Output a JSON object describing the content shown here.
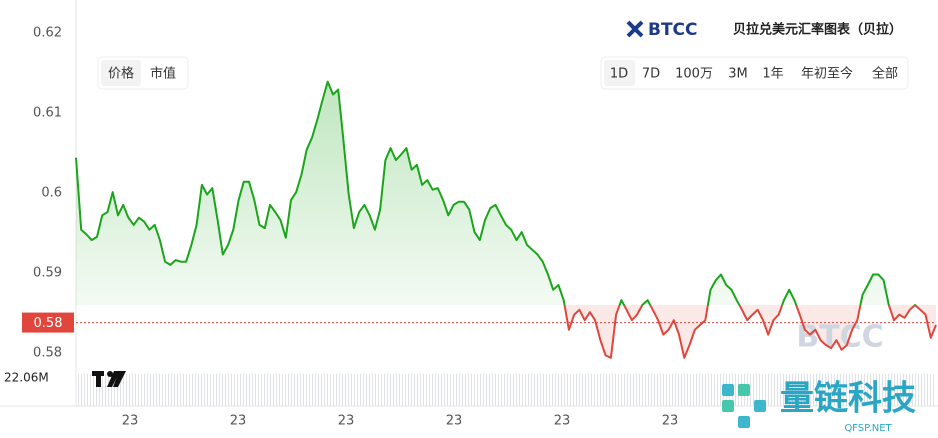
{
  "chart_data": {
    "type": "line",
    "title": "贝拉兑美元汇率图表（贝拉）",
    "brand": "BTCC",
    "tabs": [
      "价格",
      "市值"
    ],
    "ranges": [
      "1D",
      "7D",
      "100万",
      "3M",
      "1年",
      "年初至今",
      "全部"
    ],
    "ylim": [
      0.5775,
      0.6241
    ],
    "yticks": [
      0.62,
      0.61,
      0.6,
      0.59,
      0.58
    ],
    "baseline": 0.586,
    "current_value": 0.5838,
    "current_label": "0.58",
    "volume_label": "22.06M",
    "xtick_labels": [
      "23",
      "23",
      "23",
      "23",
      "23",
      "23"
    ],
    "up_color": "#1aa51a",
    "down_color": "#e0463c",
    "watermarks": [
      "量链科技",
      "QFSP.NET"
    ],
    "values": [
      0.6044,
      0.5954,
      0.5948,
      0.5941,
      0.5945,
      0.5972,
      0.5976,
      0.6001,
      0.5972,
      0.5985,
      0.5969,
      0.596,
      0.5969,
      0.5964,
      0.5954,
      0.596,
      0.5941,
      0.5914,
      0.591,
      0.5916,
      0.5914,
      0.5914,
      0.5935,
      0.596,
      0.601,
      0.5998,
      0.6006,
      0.5966,
      0.5923,
      0.5935,
      0.5954,
      0.5991,
      0.6014,
      0.6014,
      0.5991,
      0.596,
      0.5956,
      0.5985,
      0.5976,
      0.5966,
      0.5944,
      0.5991,
      0.6001,
      0.6023,
      0.6054,
      0.6069,
      0.6091,
      0.6116,
      0.6139,
      0.6123,
      0.6129,
      0.6066,
      0.5998,
      0.5956,
      0.5976,
      0.5985,
      0.5972,
      0.5954,
      0.5979,
      0.6041,
      0.6056,
      0.6041,
      0.6048,
      0.6056,
      0.6029,
      0.6035,
      0.601,
      0.6016,
      0.6004,
      0.6006,
      0.5991,
      0.5972,
      0.5985,
      0.5989,
      0.5989,
      0.5979,
      0.5951,
      0.5941,
      0.5966,
      0.5981,
      0.5985,
      0.5972,
      0.596,
      0.5954,
      0.5941,
      0.5951,
      0.5935,
      0.5929,
      0.5923,
      0.5914,
      0.5898,
      0.5879,
      0.5885,
      0.5866,
      0.5829,
      0.5848,
      0.5854,
      0.5841,
      0.5851,
      0.5841,
      0.5816,
      0.5797,
      0.5794,
      0.5848,
      0.5866,
      0.5854,
      0.5841,
      0.5848,
      0.586,
      0.5866,
      0.5854,
      0.5841,
      0.5823,
      0.5829,
      0.5841,
      0.5823,
      0.5794,
      0.581,
      0.5829,
      0.5835,
      0.5841,
      0.5879,
      0.5891,
      0.5898,
      0.5885,
      0.5879,
      0.5866,
      0.5854,
      0.5841,
      0.5848,
      0.5854,
      0.5841,
      0.5823,
      0.5841,
      0.5848,
      0.5866,
      0.5879,
      0.5866,
      0.5848,
      0.5829,
      0.5823,
      0.5829,
      0.5816,
      0.581,
      0.5806,
      0.5816,
      0.5804,
      0.581,
      0.5829,
      0.5841,
      0.5873,
      0.5885,
      0.5898,
      0.5898,
      0.5891,
      0.586,
      0.5841,
      0.5848,
      0.5844,
      0.5854,
      0.586,
      0.5854,
      0.5848,
      0.5819,
      0.5835
    ]
  }
}
